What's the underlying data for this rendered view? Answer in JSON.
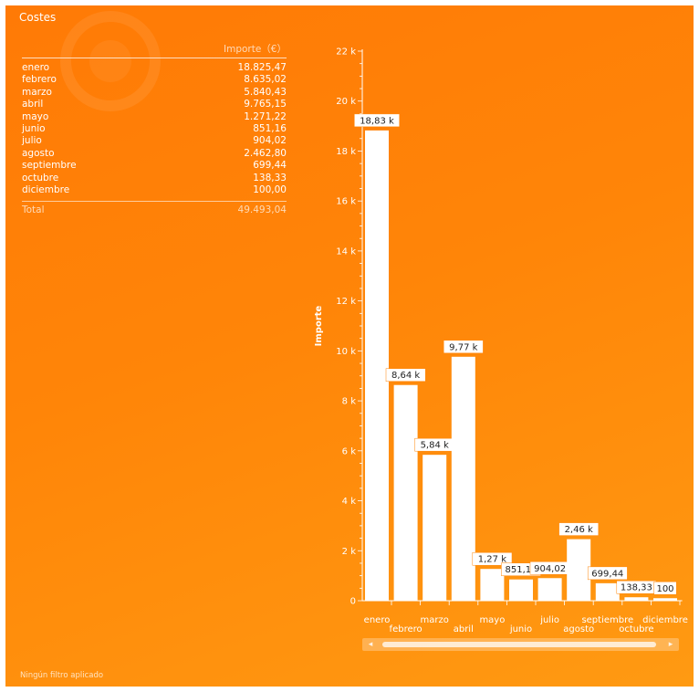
{
  "panel": {
    "title": "Costes",
    "footer": "Ningún filtro aplicado"
  },
  "table": {
    "column_header": "Importe（€）",
    "rows": [
      {
        "month": "enero",
        "value": "18.825,47"
      },
      {
        "month": "febrero",
        "value": "8.635,02"
      },
      {
        "month": "marzo",
        "value": "5.840,43"
      },
      {
        "month": "abril",
        "value": "9.765,15"
      },
      {
        "month": "mayo",
        "value": "1.271,22"
      },
      {
        "month": "junio",
        "value": "851,16"
      },
      {
        "month": "julio",
        "value": "904,02"
      },
      {
        "month": "agosto",
        "value": "2.462,80"
      },
      {
        "month": "septiembre",
        "value": "699,44"
      },
      {
        "month": "octubre",
        "value": "138,33"
      },
      {
        "month": "diciembre",
        "value": "100,00"
      }
    ],
    "total_label": "Total",
    "total_value": "49.493,04"
  },
  "chart_data": {
    "type": "bar",
    "ylabel": "Importe",
    "categories": [
      "enero",
      "febrero",
      "marzo",
      "abril",
      "mayo",
      "junio",
      "julio",
      "agosto",
      "septiembre",
      "octubre",
      "diciembre"
    ],
    "values": [
      18825.47,
      8635.02,
      5840.43,
      9765.15,
      1271.22,
      851.16,
      904.02,
      2462.8,
      699.44,
      138.33,
      100.0
    ],
    "data_labels": [
      "18,83 k",
      "8,64 k",
      "5,84 k",
      "9,77 k",
      "1,27 k",
      "851,16",
      "904,02",
      "2,46 k",
      "699,44",
      "138,33",
      "100"
    ],
    "ylim": [
      0,
      22000
    ],
    "yticks": [
      0,
      2000,
      4000,
      6000,
      8000,
      10000,
      12000,
      14000,
      16000,
      18000,
      20000,
      22000
    ],
    "ytick_labels": [
      "0",
      "2 k",
      "4 k",
      "6 k",
      "8 k",
      "10 k",
      "12 k",
      "14 k",
      "16 k",
      "18 k",
      "20 k",
      "22 k"
    ],
    "bar_color": "#ffffff",
    "background_color": "#ff8508"
  },
  "scrollbar": {
    "left_arrow_icon": "chevron-left-icon",
    "right_arrow_icon": "chevron-right-icon",
    "left_glyph": "◂",
    "right_glyph": "▸"
  }
}
